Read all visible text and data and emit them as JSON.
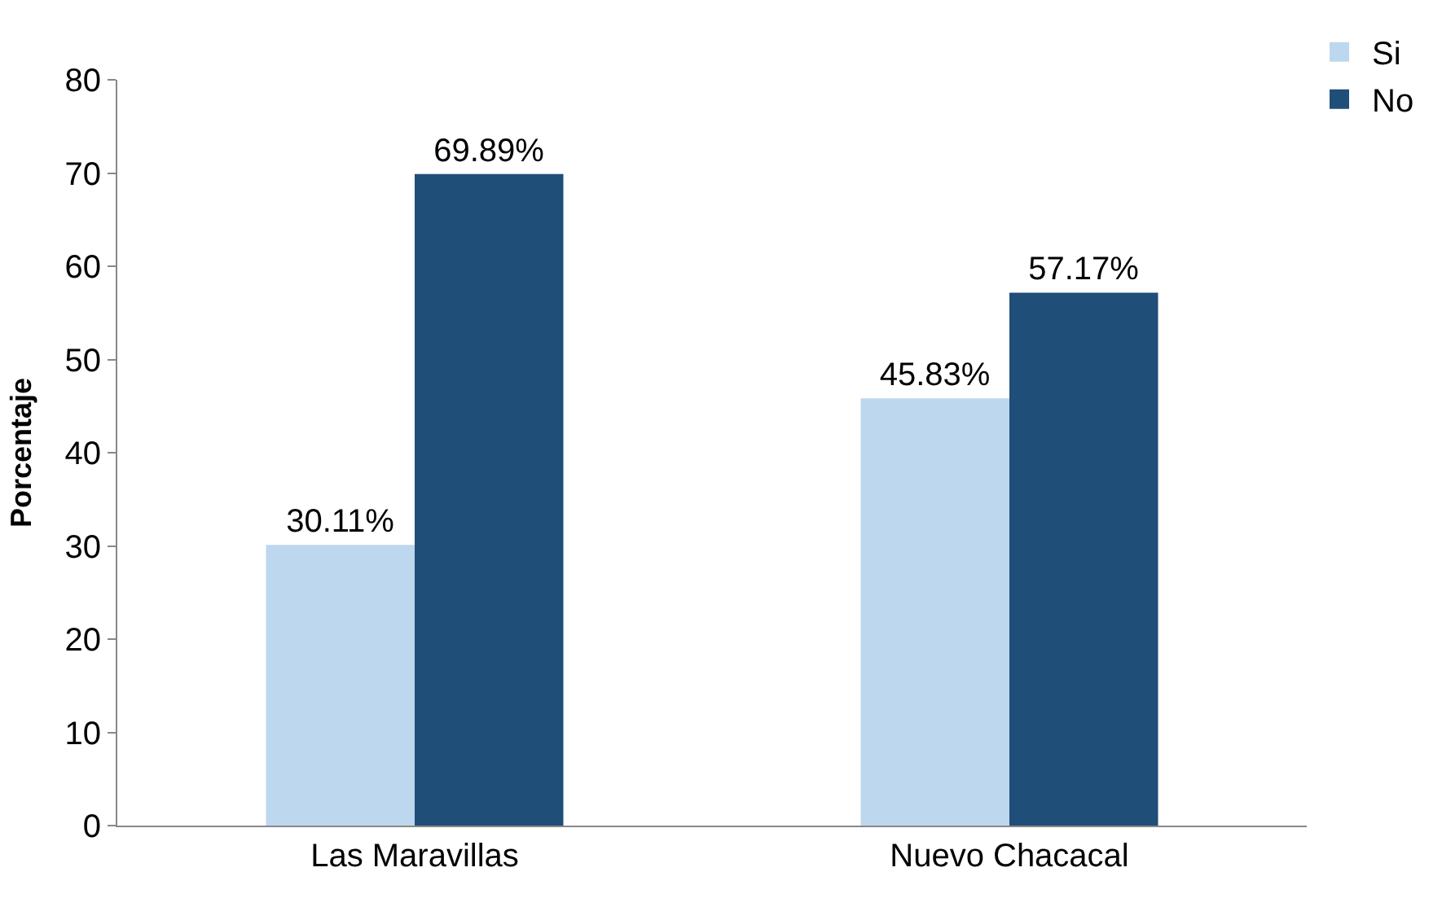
{
  "chart_data": {
    "type": "bar",
    "ylabel": "Porcentaje",
    "categories": [
      "Las Maravillas",
      "Nuevo Chacacal"
    ],
    "series": [
      {
        "name": "Si",
        "color": "#bdd7ee",
        "values": [
          30.11,
          45.83
        ],
        "value_labels": [
          "30.11%",
          "45.83%"
        ]
      },
      {
        "name": "No",
        "color": "#1f4e79",
        "values": [
          69.89,
          57.17
        ],
        "value_labels": [
          "69.89%",
          "57.17%"
        ]
      }
    ],
    "ylim": [
      0,
      80
    ],
    "yticks": [
      0,
      10,
      20,
      30,
      40,
      50,
      60,
      70,
      80
    ],
    "legend": "top right"
  }
}
